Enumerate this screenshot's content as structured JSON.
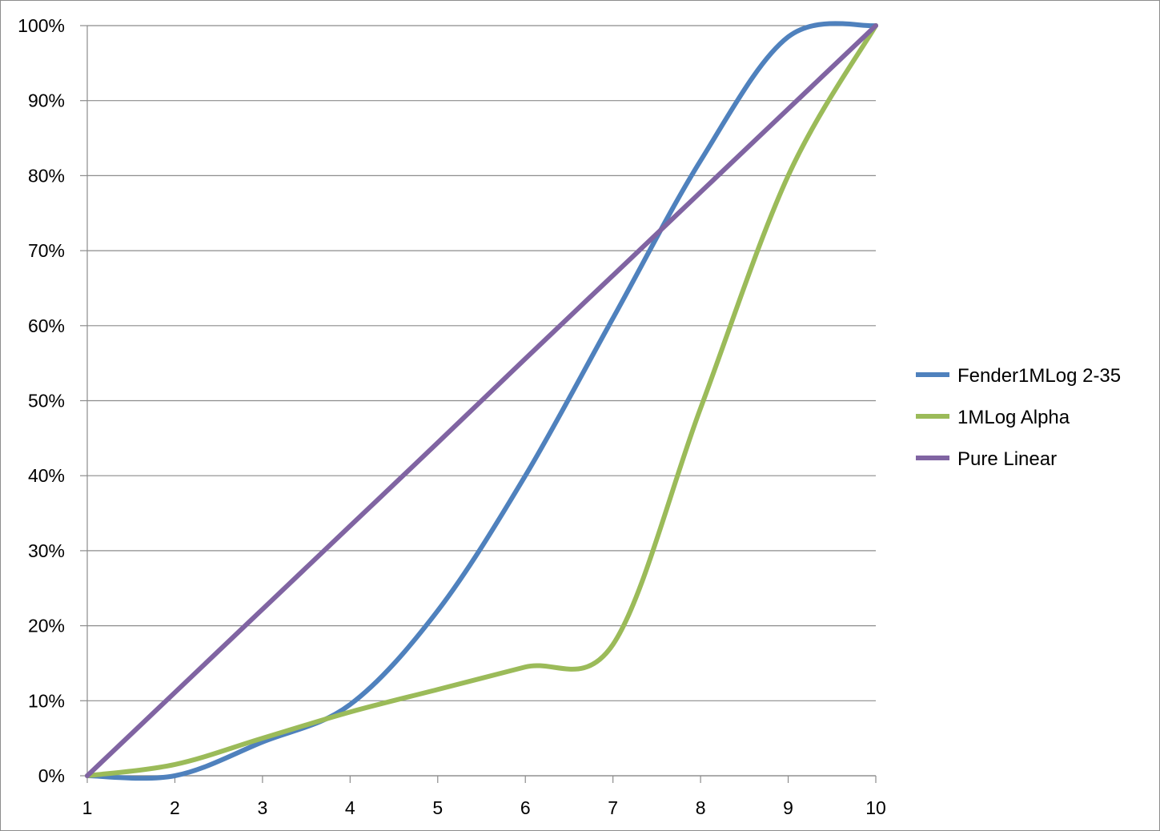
{
  "chart_data": {
    "type": "line",
    "title": "",
    "xlabel": "",
    "ylabel": "",
    "x": [
      1,
      2,
      3,
      4,
      5,
      6,
      7,
      8,
      9,
      10
    ],
    "x_tick_labels": [
      "1",
      "2",
      "3",
      "4",
      "5",
      "6",
      "7",
      "8",
      "9",
      "10"
    ],
    "xlim": [
      1,
      10
    ],
    "y_tick_values": [
      0,
      10,
      20,
      30,
      40,
      50,
      60,
      70,
      80,
      90,
      100
    ],
    "y_tick_labels": [
      "0%",
      "10%",
      "20%",
      "30%",
      "40%",
      "50%",
      "60%",
      "70%",
      "80%",
      "90%",
      "100%"
    ],
    "ylim": [
      0,
      100
    ],
    "y_unit": "%",
    "grid": "horizontal",
    "legend_position": "right",
    "series": [
      {
        "name": "Fender1MLog 2-35",
        "color": "#4f81bd",
        "values": [
          0,
          0,
          4.5,
          9.5,
          22,
          40,
          61,
          82,
          98.5,
          100
        ]
      },
      {
        "name": "1MLog Alpha",
        "color": "#9bbb59",
        "values": [
          0,
          1.5,
          5,
          8.5,
          11.5,
          14.5,
          17.5,
          49,
          80,
          100
        ]
      },
      {
        "name": "Pure Linear",
        "color": "#8064a2",
        "values": [
          0,
          11.1,
          22.2,
          33.3,
          44.4,
          55.6,
          66.7,
          77.8,
          88.9,
          100
        ]
      }
    ]
  }
}
